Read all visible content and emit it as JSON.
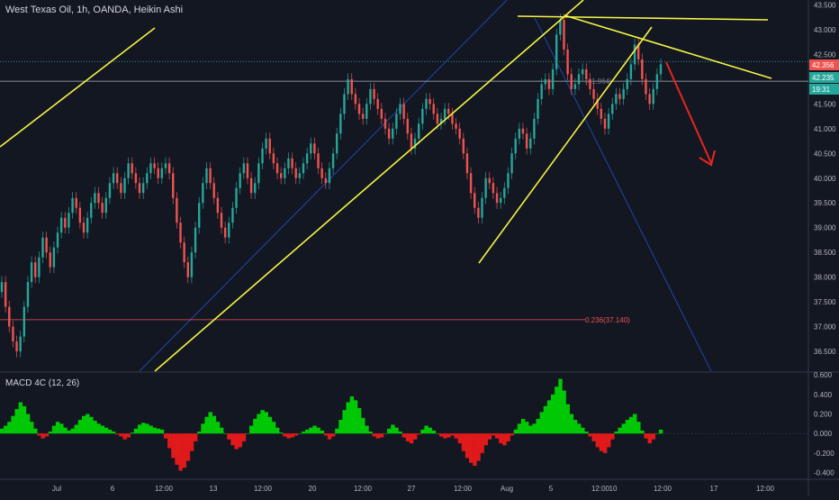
{
  "chart_title": "West Texas Oil, 1h, OANDA, Heikin Ashi",
  "colors": {
    "background": "#131722",
    "up": "#26a69a",
    "down": "#ef5350",
    "yellow": "#f5f542",
    "blue": "#2962ff",
    "red_arrow": "#e8261d",
    "macd_up": "#00c805",
    "macd_down": "#e0191b",
    "axis_text": "#b2b5be"
  },
  "chart_data": {
    "type": "candlestick",
    "title": "West Texas Oil, 1h, OANDA, Heikin Ashi",
    "y_axis": {
      "range": [
        36.1,
        43.6
      ],
      "ticks": [
        "43.500",
        "43.000",
        "42.500",
        "42.000",
        "41.500",
        "41.000",
        "40.500",
        "40.000",
        "39.500",
        "39.000",
        "38.500",
        "38.000",
        "37.500",
        "37.000",
        "36.500"
      ]
    },
    "x_axis": {
      "ticks": [
        "Jul",
        "6",
        "12:00",
        "13",
        "12:00",
        "20",
        "12:00",
        "27",
        "12:00",
        "Aug",
        "5",
        "12:00",
        "10",
        "12:00",
        "17",
        "12:00"
      ]
    },
    "price_labels": [
      {
        "value": "42.356",
        "color": "#ef5350"
      },
      {
        "value": "42.235",
        "color": "#26a69a"
      },
      {
        "value": "19:31",
        "color": "#26a69a"
      }
    ],
    "horizontal_lines": [
      {
        "value": 42.356,
        "color": "#26a69a",
        "style": "dotted"
      },
      {
        "value": 41.96,
        "color": "#b2b5be",
        "style": "solid"
      },
      {
        "value": 37.14,
        "color": "#ef5350",
        "style": "solid"
      }
    ],
    "annotations": [
      {
        "text": "(41.964)",
        "value": 41.964
      },
      {
        "text": "0.236(37.140)",
        "value": 37.14
      }
    ],
    "candles_close": [
      37.9,
      37.4,
      37.0,
      36.7,
      36.5,
      36.8,
      37.4,
      37.9,
      38.3,
      38.0,
      38.4,
      38.8,
      38.5,
      38.2,
      38.6,
      38.9,
      39.2,
      39.0,
      39.3,
      39.6,
      39.4,
      39.1,
      38.9,
      39.2,
      39.5,
      39.7,
      39.5,
      39.3,
      39.6,
      39.9,
      40.1,
      39.9,
      39.7,
      40.0,
      40.3,
      40.1,
      39.9,
      39.7,
      39.9,
      40.1,
      40.3,
      40.2,
      40.0,
      40.2,
      40.3,
      40.1,
      39.6,
      39.1,
      38.7,
      38.3,
      38.0,
      38.5,
      39.0,
      39.5,
      39.9,
      40.2,
      39.9,
      39.6,
      39.3,
      39.0,
      38.8,
      39.1,
      39.4,
      39.8,
      40.1,
      40.3,
      40.0,
      39.7,
      39.9,
      40.3,
      40.6,
      40.8,
      40.5,
      40.3,
      40.1,
      40.0,
      40.2,
      40.4,
      40.2,
      40.0,
      40.1,
      40.3,
      40.5,
      40.7,
      40.5,
      40.2,
      40.0,
      39.9,
      40.2,
      40.5,
      40.9,
      41.3,
      41.7,
      42.0,
      41.7,
      41.5,
      41.3,
      41.2,
      41.5,
      41.8,
      41.6,
      41.4,
      41.2,
      41.0,
      40.8,
      41.0,
      41.3,
      41.5,
      41.2,
      40.9,
      40.6,
      40.8,
      41.1,
      41.4,
      41.6,
      41.5,
      41.3,
      41.1,
      41.2,
      41.4,
      41.3,
      41.1,
      41.0,
      40.8,
      40.5,
      40.1,
      39.7,
      39.4,
      39.2,
      39.6,
      40.0,
      39.9,
      39.7,
      39.5,
      39.6,
      39.8,
      40.1,
      40.5,
      40.8,
      41.0,
      40.9,
      40.6,
      40.8,
      41.2,
      41.6,
      41.9,
      42.0,
      41.8,
      42.2,
      42.9,
      43.2,
      42.6,
      42.1,
      41.8,
      41.9,
      42.1,
      42.2,
      42.0,
      41.8,
      41.6,
      41.4,
      41.2,
      41.0,
      41.3,
      41.5,
      41.7,
      41.6,
      41.8,
      42.0,
      42.3,
      42.7,
      42.4,
      42.0,
      41.7,
      41.5,
      41.8,
      42.1,
      42.3
    ],
    "macd_histogram": [
      0.05,
      0.08,
      0.12,
      0.18,
      0.25,
      0.32,
      0.28,
      0.2,
      0.12,
      0.05,
      -0.02,
      -0.05,
      -0.03,
      0.02,
      0.08,
      0.12,
      0.1,
      0.06,
      0.03,
      0.05,
      0.09,
      0.14,
      0.18,
      0.2,
      0.17,
      0.13,
      0.1,
      0.08,
      0.06,
      0.04,
      0.02,
      -0.01,
      -0.03,
      -0.06,
      -0.04,
      0.01,
      0.05,
      0.09,
      0.11,
      0.1,
      0.08,
      0.06,
      0.05,
      0.04,
      -0.05,
      -0.15,
      -0.25,
      -0.32,
      -0.38,
      -0.35,
      -0.28,
      -0.18,
      -0.08,
      0.02,
      0.1,
      0.17,
      0.22,
      0.18,
      0.12,
      0.06,
      0.0,
      -0.06,
      -0.12,
      -0.16,
      -0.14,
      -0.08,
      0.0,
      0.08,
      0.15,
      0.2,
      0.24,
      0.22,
      0.17,
      0.12,
      0.06,
      0.01,
      -0.03,
      -0.05,
      -0.04,
      -0.02,
      0.0,
      0.02,
      0.04,
      0.06,
      0.08,
      0.06,
      0.03,
      -0.02,
      -0.06,
      -0.03,
      0.05,
      0.14,
      0.24,
      0.32,
      0.38,
      0.34,
      0.26,
      0.16,
      0.08,
      0.02,
      -0.03,
      -0.05,
      -0.04,
      0.0,
      0.05,
      0.09,
      0.06,
      0.02,
      -0.04,
      -0.08,
      -0.1,
      -0.06,
      -0.01,
      0.04,
      0.08,
      0.06,
      0.03,
      0.0,
      -0.03,
      -0.05,
      -0.04,
      -0.02,
      -0.05,
      -0.1,
      -0.18,
      -0.25,
      -0.3,
      -0.33,
      -0.28,
      -0.2,
      -0.12,
      -0.06,
      -0.02,
      -0.05,
      -0.1,
      -0.12,
      -0.08,
      -0.02,
      0.04,
      0.1,
      0.15,
      0.12,
      0.08,
      0.1,
      0.15,
      0.22,
      0.28,
      0.34,
      0.4,
      0.48,
      0.56,
      0.44,
      0.3,
      0.2,
      0.14,
      0.1,
      0.06,
      0.02,
      -0.03,
      -0.08,
      -0.14,
      -0.18,
      -0.2,
      -0.14,
      -0.06,
      0.02,
      0.06,
      0.1,
      0.14,
      0.17,
      0.2,
      0.12,
      0.03,
      -0.05,
      -0.1,
      -0.06,
      0.0,
      0.04
    ],
    "macd_axis": {
      "label": "MACD 4C (12, 26)",
      "range": [
        -0.45,
        0.62
      ],
      "ticks": [
        "0.600",
        "0.400",
        "0.200",
        "0.000",
        "-0.200",
        "-0.400"
      ]
    }
  }
}
